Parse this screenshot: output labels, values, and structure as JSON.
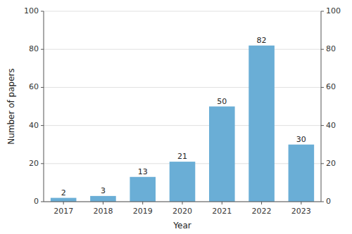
{
  "chart_data": {
    "type": "bar",
    "categories": [
      "2017",
      "2018",
      "2019",
      "2020",
      "2021",
      "2022",
      "2023"
    ],
    "values": [
      2,
      3,
      13,
      21,
      50,
      82,
      30
    ],
    "color": "#6aaed6",
    "xlabel": "Year",
    "ylabel": "Number of papers",
    "ylim": [
      0,
      100
    ],
    "yticks": [
      0,
      20,
      40,
      60,
      80,
      100
    ],
    "grid": true,
    "data_labels": true
  }
}
